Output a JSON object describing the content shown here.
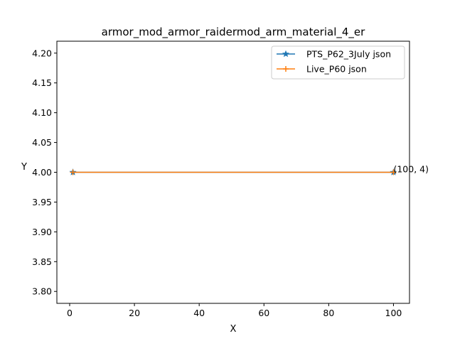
{
  "chart_data": {
    "type": "line",
    "title": "armor_mod_armor_raidermod_arm_material_4_er",
    "xlabel": "X",
    "ylabel": "Y",
    "xlim": [
      -3.95,
      104.95
    ],
    "ylim": [
      3.78,
      4.22
    ],
    "xticks": [
      0,
      20,
      40,
      60,
      80,
      100
    ],
    "yticks": [
      3.8,
      3.85,
      3.9,
      3.95,
      4.0,
      4.05,
      4.1,
      4.15,
      4.2
    ],
    "ytick_labels": [
      "3.80",
      "3.85",
      "3.90",
      "3.95",
      "4.00",
      "4.05",
      "4.10",
      "4.15",
      "4.20"
    ],
    "grid": false,
    "legend_position": "top-right",
    "series": [
      {
        "name": "PTS_P62_3July json",
        "color": "#1f77b4",
        "marker": "star",
        "x": [
          1,
          100
        ],
        "y": [
          4,
          4
        ]
      },
      {
        "name": "Live_P60 json",
        "color": "#ff7f0e",
        "marker": "plus",
        "x": [
          1,
          100
        ],
        "y": [
          4,
          4
        ]
      }
    ],
    "annotations": [
      {
        "text": "(100, 4)",
        "x": 100,
        "y": 4
      }
    ]
  }
}
